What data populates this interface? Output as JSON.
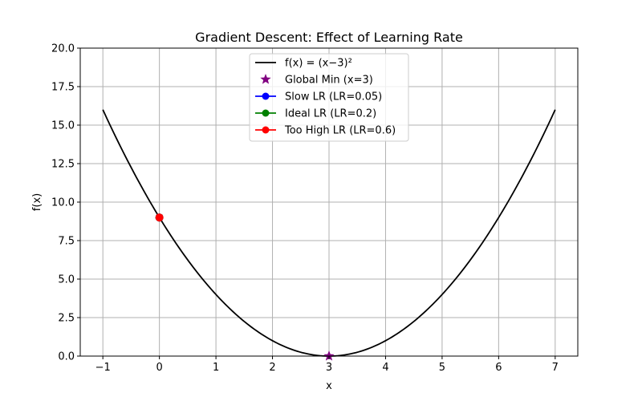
{
  "chart_data": {
    "type": "line",
    "title": "Gradient Descent: Effect of Learning Rate",
    "xlabel": "x",
    "ylabel": "f(x)",
    "xlim": [
      -1.4,
      7.4
    ],
    "ylim": [
      0,
      20
    ],
    "xticks": [
      -1,
      0,
      1,
      2,
      3,
      4,
      5,
      6,
      7
    ],
    "xtick_labels": [
      "−1",
      "0",
      "1",
      "2",
      "3",
      "4",
      "5",
      "6",
      "7"
    ],
    "yticks": [
      0,
      2.5,
      5,
      7.5,
      10,
      12.5,
      15,
      17.5,
      20
    ],
    "ytick_labels": [
      "0.0",
      "2.5",
      "5.0",
      "7.5",
      "10.0",
      "12.5",
      "15.0",
      "17.5",
      "20.0"
    ],
    "grid": true,
    "legend_position": "top-center",
    "curve": {
      "name": "f(x) = (x−3)²",
      "function": "(x-3)^2",
      "x_range": [
        -1,
        7
      ],
      "color": "#000000"
    },
    "series": [
      {
        "name": "Global Min (x=3)",
        "marker": "star",
        "color": "#800080",
        "points": [
          [
            3,
            0
          ]
        ]
      },
      {
        "name": "Slow LR (LR=0.05)",
        "marker": "circle",
        "color": "#0000ff",
        "points": [
          [
            0,
            9
          ]
        ]
      },
      {
        "name": "Ideal LR (LR=0.2)",
        "marker": "circle",
        "color": "#008000",
        "points": [
          [
            0,
            9
          ]
        ]
      },
      {
        "name": "Too High LR (LR=0.6)",
        "marker": "circle",
        "color": "#ff0000",
        "points": [
          [
            0,
            9
          ]
        ]
      }
    ]
  }
}
